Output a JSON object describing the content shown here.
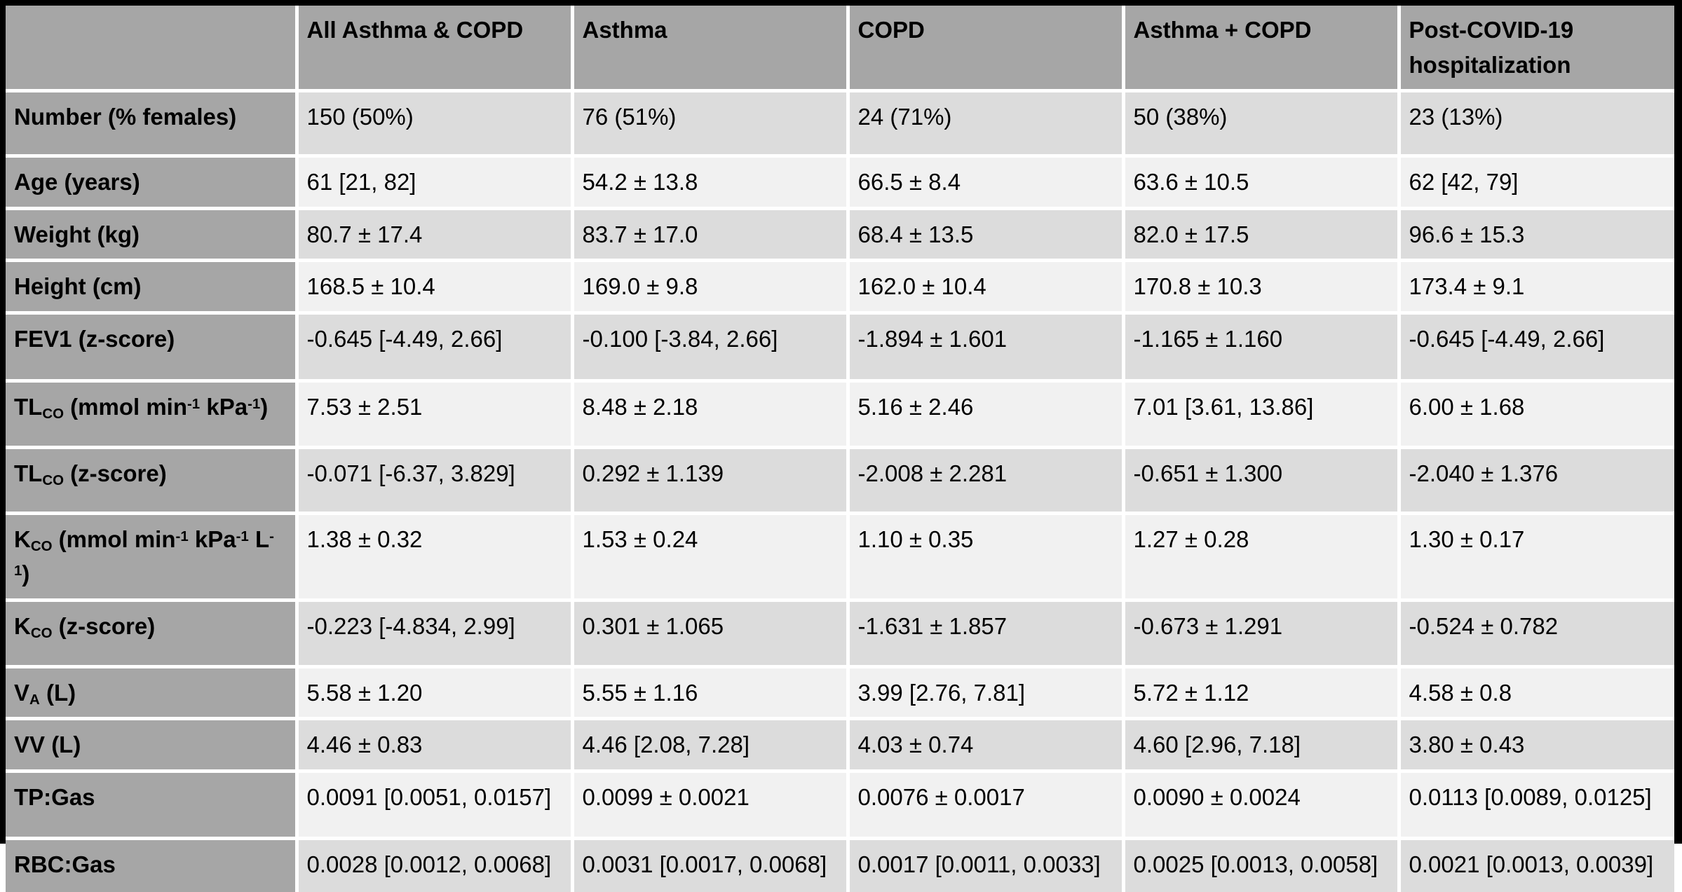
{
  "colors": {
    "frame": "#000000",
    "header_bg": "#a6a6a6",
    "label_bg": "#a6a6a6",
    "row_dark": "#dcdcdc",
    "row_light": "#f1f1f1",
    "separator": "#ffffff",
    "text": "#000000"
  },
  "chart_data": {
    "type": "table",
    "layout_hint": "first column = row labels; banded rows; gray header row and label column; markers ~x~ = subscript, ^x^ = superscript",
    "columns": [
      "",
      "All Asthma & COPD",
      "Asthma",
      "COPD",
      "Asthma + COPD",
      "Post-COVID-19 hospitalization"
    ],
    "rows": [
      {
        "label": "Number (% females)",
        "values": [
          "150 (50%)",
          "76 (51%)",
          "24 (71%)",
          "50 (38%)",
          "23 (13%)"
        ]
      },
      {
        "label": "Age (years)",
        "values": [
          "61 [21, 82]",
          "54.2 ± 13.8",
          "66.5 ± 8.4",
          "63.6 ± 10.5",
          "62 [42, 79]"
        ]
      },
      {
        "label": "Weight (kg)",
        "values": [
          "80.7 ± 17.4",
          "83.7 ± 17.0",
          "68.4 ± 13.5",
          "82.0 ± 17.5",
          "96.6 ± 15.3"
        ]
      },
      {
        "label": "Height (cm)",
        "values": [
          "168.5 ± 10.4",
          "169.0 ± 9.8",
          "162.0 ± 10.4",
          "170.8 ± 10.3",
          "173.4 ± 9.1"
        ]
      },
      {
        "label": "FEV1 (z-score)",
        "values": [
          "-0.645 [-4.49, 2.66]",
          "-0.100 [-3.84, 2.66]",
          "-1.894 ± 1.601",
          "-1.165 ± 1.160",
          "-0.645 [-4.49, 2.66]"
        ]
      },
      {
        "label": "TL~CO~ (mmol min^-1^ kPa^-1^)",
        "values": [
          "7.53 ± 2.51",
          "8.48 ± 2.18",
          "5.16 ± 2.46",
          "7.01 [3.61, 13.86]",
          "6.00 ± 1.68"
        ]
      },
      {
        "label": "TL~CO~ (z-score)",
        "values": [
          "-0.071 [-6.37, 3.829]",
          "0.292 ± 1.139",
          "-2.008 ± 2.281",
          "-0.651 ± 1.300",
          "-2.040 ± 1.376"
        ]
      },
      {
        "label": "K~CO~ (mmol min^-1^ kPa^-1^ L^-1^)",
        "values": [
          "1.38 ± 0.32",
          "1.53 ± 0.24",
          "1.10 ± 0.35",
          "1.27 ± 0.28",
          "1.30 ± 0.17"
        ]
      },
      {
        "label": "K~CO~ (z-score)",
        "values": [
          "-0.223 [-4.834, 2.99]",
          "0.301 ± 1.065",
          "-1.631 ± 1.857",
          "-0.673 ± 1.291",
          "-0.524 ± 0.782"
        ]
      },
      {
        "label": "V~A~ (L)",
        "values": [
          "5.58 ± 1.20",
          "5.55 ± 1.16",
          "3.99 [2.76, 7.81]",
          "5.72 ± 1.12",
          "4.58 ± 0.8"
        ]
      },
      {
        "label": "VV (L)",
        "values": [
          "4.46 ± 0.83",
          "4.46 [2.08, 7.28]",
          "4.03 ± 0.74",
          "4.60 [2.96, 7.18]",
          "3.80 ± 0.43"
        ]
      },
      {
        "label": "TP:Gas",
        "values": [
          "0.0091 [0.0051, 0.0157]",
          "0.0099 ± 0.0021",
          "0.0076 ± 0.0017",
          "0.0090 ± 0.0024",
          "0.0113 [0.0089, 0.0125]"
        ]
      },
      {
        "label": "RBC:Gas",
        "values": [
          "0.0028 [0.0012, 0.0068]",
          "0.0031 [0.0017, 0.0068]",
          "0.0017 [0.0011, 0.0033]",
          "0.0025 [0.0013, 0.0058]",
          "0.0021 [0.0013, 0.0039]"
        ]
      }
    ]
  }
}
